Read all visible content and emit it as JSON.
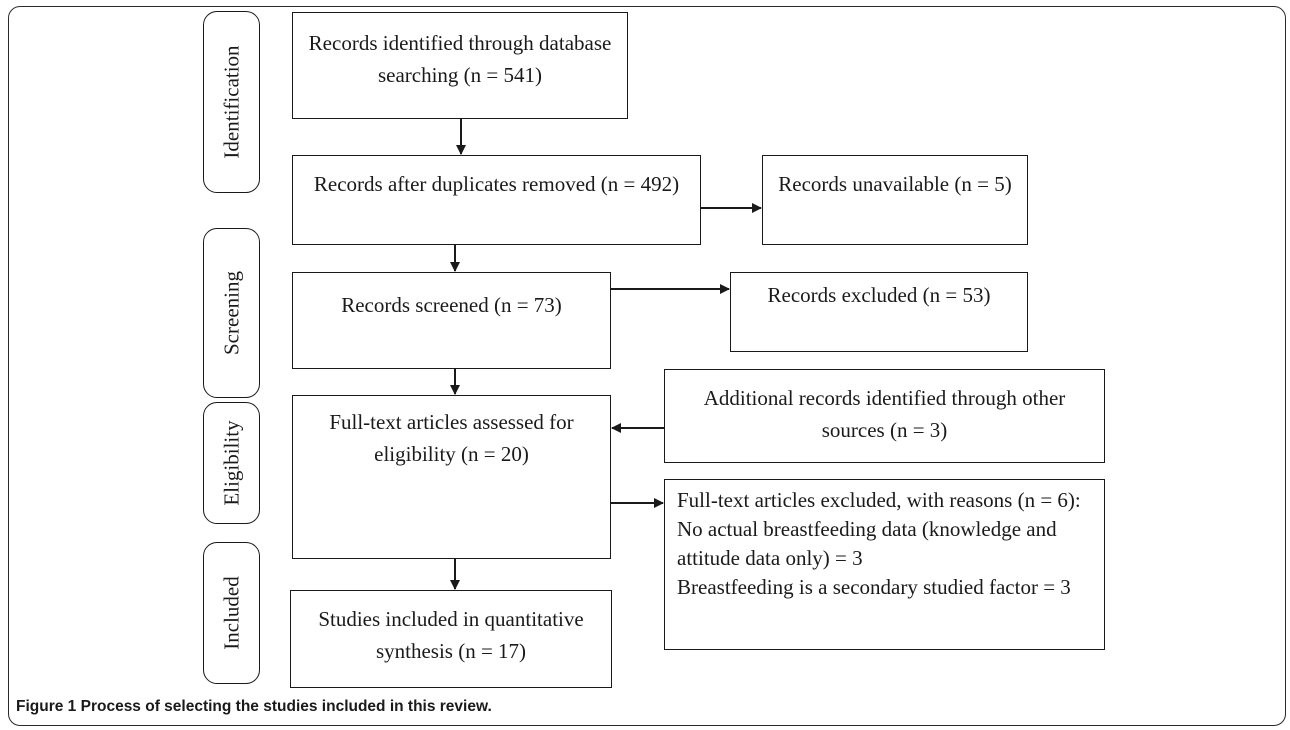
{
  "stages": {
    "identification": "Identification",
    "screening": "Screening",
    "eligibility": "Eligibility",
    "included": "Included"
  },
  "boxes": {
    "records_identified": "Records identified through database searching (n = 541)",
    "after_duplicates": "Records after duplicates removed (n = 492)",
    "unavailable": "Records unavailable (n = 5)",
    "screened": "Records screened (n = 73)",
    "excluded": "Records excluded (n = 53)",
    "full_text": "Full-text articles assessed for eligibility (n = 20)",
    "additional": "Additional records identified through other sources (n = 3)",
    "excluded_reasons_line1": "Full-text articles excluded, with reasons (n = 6): No actual breastfeeding data (knowledge and attitude data only) = 3",
    "excluded_reasons_line2": "Breastfeeding is a secondary studied factor = 3",
    "included_studies": "Studies included in quantitative synthesis (n = 17)"
  },
  "caption": {
    "label": "Figure 1",
    "text": "Process of selecting the studies included in this review."
  }
}
